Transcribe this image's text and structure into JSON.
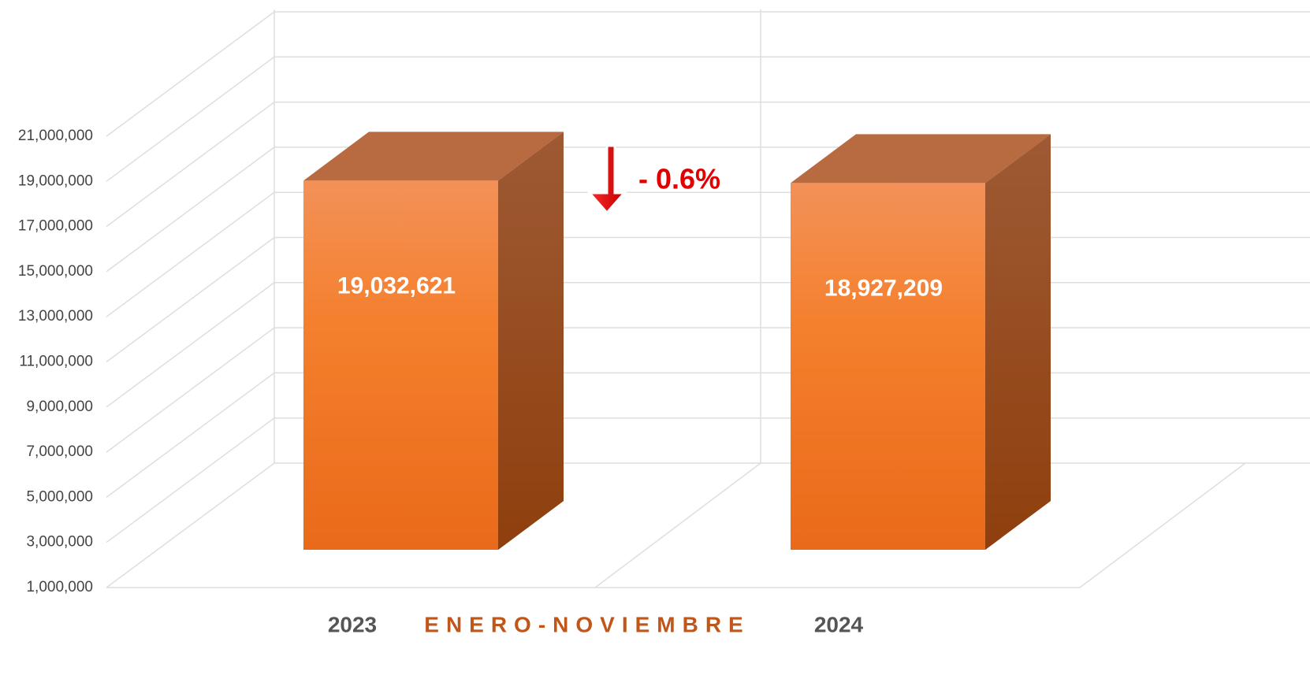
{
  "chart_data": {
    "type": "bar",
    "categories": [
      "2023",
      "2024"
    ],
    "values": [
      19032621,
      18927209
    ],
    "value_labels": [
      "19,032,621",
      "18,927,209"
    ],
    "color": "#f07c2a",
    "x_label": "ENERO-NOVIEMBRE",
    "annotation": "- 0.6%",
    "ylim": [
      1000000,
      21000000
    ],
    "yticks": [
      {
        "value": 1000000,
        "label": "1,000,000"
      },
      {
        "value": 3000000,
        "label": "3,000,000"
      },
      {
        "value": 5000000,
        "label": "5,000,000"
      },
      {
        "value": 7000000,
        "label": "7,000,000"
      },
      {
        "value": 9000000,
        "label": "9,000,000"
      },
      {
        "value": 11000000,
        "label": "11,000,000"
      },
      {
        "value": 13000000,
        "label": "13,000,000"
      },
      {
        "value": 15000000,
        "label": "15,000,000"
      },
      {
        "value": 17000000,
        "label": "17,000,000"
      },
      {
        "value": 19000000,
        "label": "19,000,000"
      },
      {
        "value": 21000000,
        "label": "21,000,000"
      }
    ],
    "grid": true
  }
}
